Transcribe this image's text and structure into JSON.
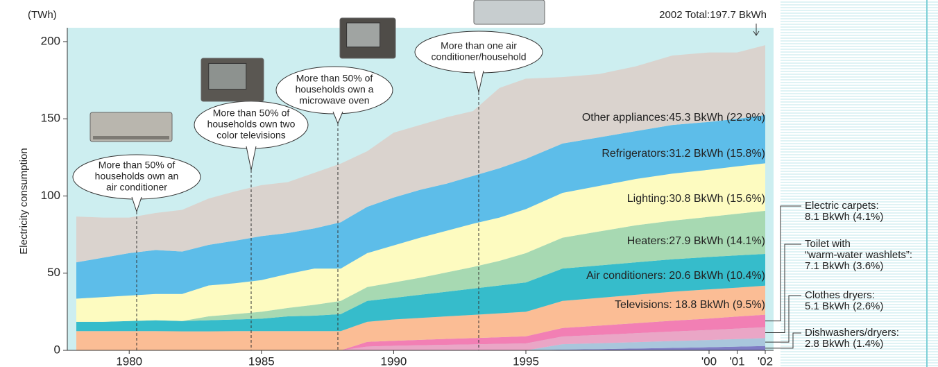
{
  "chart_data": {
    "type": "stacked-area",
    "unit_label": "(TWh)",
    "y_label": "Electricity consumption",
    "total_note": "2002 Total:197.7 BkWh",
    "x": [
      1978,
      1979,
      1980,
      1981,
      1982,
      1983,
      1984,
      1985,
      1986,
      1987,
      1988,
      1989,
      1990,
      1991,
      1992,
      1993,
      1994,
      1995,
      1996,
      1997,
      1998,
      1999,
      2000,
      2001,
      2002
    ],
    "xlim": [
      1978,
      2002
    ],
    "xticks": [
      1980,
      1985,
      1990,
      1995,
      {
        "value": 2000,
        "label": "'00"
      },
      {
        "value": 2001,
        "label": "'01"
      },
      {
        "value": 2002,
        "label": "'02"
      }
    ],
    "ylim": [
      0,
      200
    ],
    "yticks": [
      0,
      50,
      100,
      150,
      200
    ],
    "series": [
      {
        "name": [
          "Dishwashers/dryers:",
          "2.8 BkWh (1.4%)"
        ],
        "color": "#7f7cc4",
        "values": [
          0,
          0,
          0,
          0,
          0,
          0,
          0,
          0,
          0,
          0,
          0,
          0,
          0,
          0,
          0,
          0,
          0,
          0,
          0.5,
          0.8,
          1.2,
          1.6,
          2.0,
          2.4,
          2.8
        ]
      },
      {
        "name": [
          "Clothes dryers:",
          "5.1 BkWh (2.6%)"
        ],
        "color": "#a9c6dc",
        "values": [
          0,
          0,
          0,
          0,
          0,
          0,
          0,
          0,
          0,
          0,
          0,
          0,
          0,
          0,
          0,
          0,
          0,
          0,
          3.5,
          3.8,
          4.1,
          4.4,
          4.7,
          4.9,
          5.1
        ]
      },
      {
        "name": [
          "Toilet with",
          "“warm-water washlets”:",
          "7.1 BkWh (3.6%)"
        ],
        "color": "#eaa6c6",
        "values": [
          0,
          0,
          0,
          0,
          0,
          0,
          0,
          0,
          0,
          0,
          0,
          2.5,
          3,
          3.3,
          3.6,
          3.9,
          4.2,
          4.5,
          5,
          5.4,
          5.8,
          6.2,
          6.5,
          6.8,
          7.1
        ]
      },
      {
        "name": [
          "Electric carpets:",
          "8.1 BkWh (4.1%)"
        ],
        "color": "#f27fb4",
        "values": [
          0,
          0,
          0,
          0,
          0,
          0,
          0,
          0,
          0,
          0,
          0,
          3,
          3.2,
          3.5,
          3.8,
          4,
          4.3,
          4.6,
          5.5,
          6,
          6.5,
          7,
          7.4,
          7.8,
          8.1
        ]
      },
      {
        "name": "Televisions: 18.8 BkWh (9.5%)",
        "color": "#fbbd95",
        "values": [
          12.5,
          12.5,
          12.5,
          12.5,
          12.3,
          12.3,
          12.5,
          12.5,
          12.5,
          12.5,
          12.5,
          13,
          13.8,
          14.2,
          14.6,
          15.1,
          15.5,
          15.9,
          17.5,
          18,
          18.4,
          18.8,
          18.9,
          18.7,
          18.8
        ]
      },
      {
        "name": "Air conditioners: 20.6 BkWh (10.4%)",
        "color": "#36bccb",
        "values": [
          6,
          6,
          6.5,
          7,
          6.7,
          7.2,
          7.5,
          8,
          9.5,
          10,
          11,
          13.5,
          14,
          15,
          16,
          17,
          18,
          19,
          21,
          21,
          21,
          21,
          21,
          20.9,
          20.6
        ]
      },
      {
        "name": "Heaters:27.9 BkWh (14.1%)",
        "color": "#a7d9b2",
        "values": [
          0,
          0,
          0,
          0,
          0,
          2.5,
          3.5,
          4.5,
          5.5,
          7,
          8.5,
          9,
          10,
          11,
          12.5,
          14,
          16,
          19,
          20,
          22,
          24,
          25,
          26,
          27,
          27.9
        ]
      },
      {
        "name": "Lighting:30.8 BkWh (15.6%)",
        "color": "#fdfbc0",
        "values": [
          15,
          16,
          16.5,
          17,
          17.5,
          20,
          20,
          20.5,
          22,
          23.5,
          21,
          22,
          24,
          26,
          27,
          28,
          28,
          28.5,
          29,
          29.5,
          30,
          30.5,
          30.5,
          30.7,
          30.8
        ]
      },
      {
        "name": "Refrigerators:31.2 BkWh (15.8%)",
        "color": "#5dbde9",
        "values": [
          23.5,
          25.5,
          27.5,
          28.5,
          27.5,
          26.3,
          27.5,
          28.5,
          26.5,
          26,
          30,
          30,
          31,
          31,
          30.5,
          31,
          32,
          32.5,
          32,
          31.5,
          31,
          31.5,
          31,
          30.8,
          31.2
        ]
      },
      {
        "name": "Other appliances:45.3 BkWh (22.9%)",
        "color": "#dad3ce",
        "values": [
          29.7,
          26,
          23,
          24,
          27,
          30,
          32,
          33,
          33,
          36,
          38,
          36,
          42,
          42,
          43,
          42,
          52,
          52,
          43,
          41,
          42,
          45,
          45,
          43,
          45.3
        ]
      }
    ],
    "callouts": [
      {
        "lines": [
          "More than 50% of",
          "households own an",
          "air conditioner"
        ]
      },
      {
        "lines": [
          "More than 50% of",
          "households own two",
          "color televisions"
        ]
      },
      {
        "lines": [
          "More than 50% of",
          "households own a",
          "microwave oven"
        ]
      },
      {
        "lines": [
          "More than one air",
          "conditioner/household"
        ]
      }
    ]
  }
}
